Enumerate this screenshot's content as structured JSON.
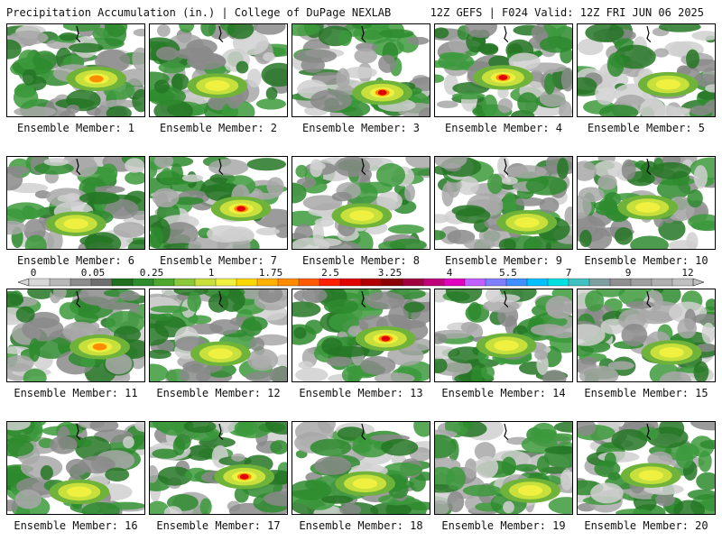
{
  "header": {
    "left": "Precipitation Accumulation (in.) | College of DuPage NEXLAB",
    "right": "12Z GEFS | F024 Valid: 12Z FRI JUN 06 2025"
  },
  "members": [
    {
      "label": "Ensemble Member: 1",
      "max": 2.0
    },
    {
      "label": "Ensemble Member: 2",
      "max": 1.5
    },
    {
      "label": "Ensemble Member: 3",
      "max": 3.5
    },
    {
      "label": "Ensemble Member: 4",
      "max": 3.0
    },
    {
      "label": "Ensemble Member: 5",
      "max": 1.0
    },
    {
      "label": "Ensemble Member: 6",
      "max": 1.0
    },
    {
      "label": "Ensemble Member: 7",
      "max": 2.5
    },
    {
      "label": "Ensemble Member: 8",
      "max": 1.5
    },
    {
      "label": "Ensemble Member: 9",
      "max": 1.0
    },
    {
      "label": "Ensemble Member: 10",
      "max": 1.0
    },
    {
      "label": "Ensemble Member: 11",
      "max": 2.0
    },
    {
      "label": "Ensemble Member: 12",
      "max": 1.5
    },
    {
      "label": "Ensemble Member: 13",
      "max": 2.5
    },
    {
      "label": "Ensemble Member: 14",
      "max": 1.0
    },
    {
      "label": "Ensemble Member: 15",
      "max": 1.5
    },
    {
      "label": "Ensemble Member: 16",
      "max": 1.0
    },
    {
      "label": "Ensemble Member: 17",
      "max": 2.5
    },
    {
      "label": "Ensemble Member: 18",
      "max": 1.0
    },
    {
      "label": "Ensemble Member: 19",
      "max": 1.0
    },
    {
      "label": "Ensemble Member: 20",
      "max": 1.0
    }
  ],
  "colorbar": {
    "tick_labels": [
      "0",
      "0.05",
      "0.25",
      "1",
      "1.75",
      "2.5",
      "3.25",
      "4",
      "5.5",
      "7",
      "9",
      "12"
    ],
    "colors": [
      "#d8d8d8",
      "#b8b8b8",
      "#8c8c8c",
      "#6f6f6f",
      "#1f6f1f",
      "#2e8b2e",
      "#4ea72e",
      "#8cc83c",
      "#c8e03c",
      "#f0f040",
      "#ffd700",
      "#ffb000",
      "#ff8c00",
      "#ff5a00",
      "#ff2000",
      "#e00000",
      "#b00000",
      "#8b0000",
      "#a00040",
      "#c0007a",
      "#e000c0",
      "#c060ff",
      "#8080ff",
      "#4090ff",
      "#00c0ff",
      "#00e0e0",
      "#40c0c0",
      "#80a0a0",
      "#909090",
      "#a0a0a0",
      "#b0b0b0",
      "#c0c0c0"
    ]
  }
}
